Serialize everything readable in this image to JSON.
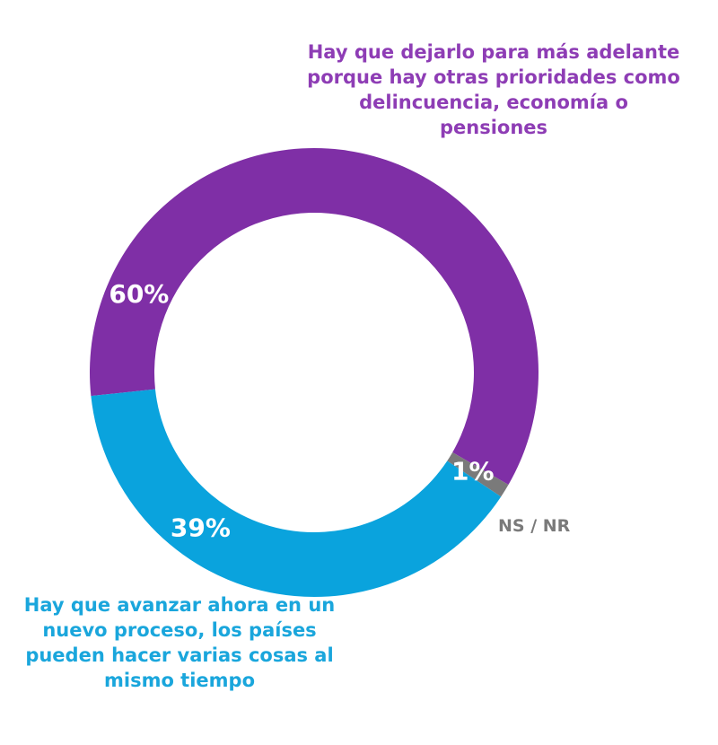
{
  "chart_data": {
    "type": "pie",
    "donut": true,
    "categories": [
      "Hay que dejarlo para más adelante porque hay otras prioridades como delincuencia, economía o pensiones",
      "NS / NR",
      "Hay que avanzar ahora en un nuevo proceso, los países pueden hacer varias cosas al mismo tiempo"
    ],
    "values": [
      60,
      1,
      39
    ],
    "value_labels": [
      "60%",
      "1%",
      "39%"
    ],
    "colors": [
      "#7f2fa6",
      "#7a7a7a",
      "#0aa3dd"
    ],
    "label_colors": [
      "#8e3db5",
      "#7a7a7a",
      "#1aa6dc"
    ]
  }
}
